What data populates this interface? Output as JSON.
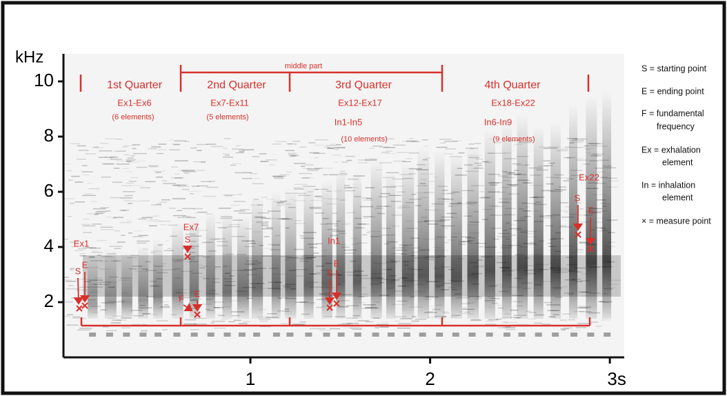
{
  "chart_data": {
    "type": "spectrogram",
    "y_label": "kHz",
    "xlim": [
      -0.04,
      3.08
    ],
    "ylim": [
      0,
      11
    ],
    "xticks": [
      1,
      2,
      {
        "value": 3,
        "label": "3s"
      }
    ],
    "yticks": [
      2,
      4,
      6,
      8,
      10
    ],
    "annotations": {
      "middle": "middle part",
      "quarters": [
        "1st Quarter",
        "2nd Quarter",
        "3rd Quarter",
        "4th Quarter"
      ],
      "ranges": [
        "Ex1-Ex6",
        "Ex7-Ex11",
        "Ex12-Ex17",
        "Ex18-Ex22",
        "In1-In5",
        "In6-In9"
      ],
      "counts": [
        "(6 elements)",
        "(5 elements)",
        "(10 elements)",
        "(9 elements)"
      ],
      "points": [
        "Ex1",
        "S",
        "E",
        "Ex7",
        "S",
        "F",
        "E",
        "In1",
        "S",
        "E",
        "Ex22",
        "S",
        "E"
      ]
    },
    "legend": [
      "S = starting point",
      "E = ending point",
      "F = fundamental",
      "frequency",
      "Ex = exhalation",
      "element",
      "In = inhalation",
      "element",
      "× = measure point"
    ]
  }
}
